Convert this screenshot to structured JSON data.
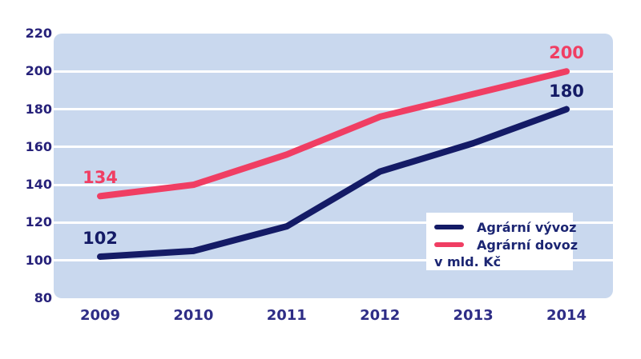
{
  "chart_data": {
    "type": "line",
    "title": "",
    "categories": [
      "2009",
      "2010",
      "2011",
      "2012",
      "2013",
      "2014"
    ],
    "series": [
      {
        "name": "Agrární vývoz",
        "color": "#141b66",
        "values": [
          102,
          105,
          118,
          147,
          162,
          180
        ]
      },
      {
        "name": "Agrární dovoz",
        "color": "#f03e63",
        "values": [
          134,
          140,
          156,
          176,
          188,
          200
        ]
      }
    ],
    "ylim": [
      80,
      220
    ],
    "yticks": [
      220,
      200,
      180,
      160,
      140,
      120,
      100,
      80
    ],
    "grid": "horizontal white gridlines on light blue plot area",
    "plot_background": "#c9d8ee",
    "axis_text_color": "#27227a",
    "x_axis_text_color": "#2e2d86",
    "annotations": [
      {
        "series": "Agrární dovoz",
        "category": "2009",
        "value": 134,
        "label": "134",
        "color": "#f03e63"
      },
      {
        "series": "Agrární vývoz",
        "category": "2009",
        "value": 102,
        "label": "102",
        "color": "#141b66"
      },
      {
        "series": "Agrární dovoz",
        "category": "2014",
        "value": 200,
        "label": "200",
        "color": "#f03e63"
      },
      {
        "series": "Agrární vývoz",
        "category": "2014",
        "value": 180,
        "label": "180",
        "color": "#141b66"
      }
    ],
    "legend": {
      "position": "inside-bottom-right",
      "items": [
        {
          "label": "Agrární vývoz",
          "color": "#141b66"
        },
        {
          "label": "Agrární dovoz",
          "color": "#f03e63"
        }
      ],
      "note": "v mld. Kč"
    }
  }
}
